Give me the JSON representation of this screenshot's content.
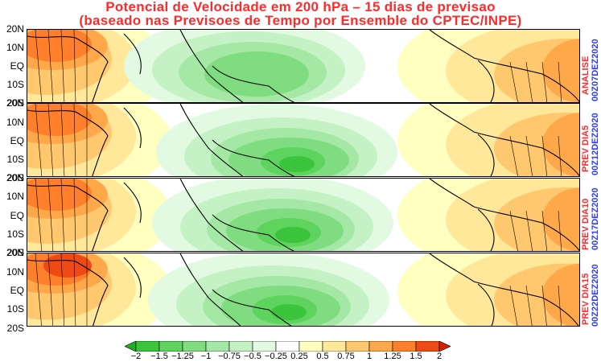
{
  "title": {
    "line1": "Potencial de Velocidade em 200 hPa – 15 dias de previsao",
    "line2": "(baseado nas Previsoes de Tempo por Ensemble do CPTEC/INPE)"
  },
  "lat_labels": [
    "20N",
    "10N",
    "EQ",
    "10S",
    "20S"
  ],
  "panels": [
    {
      "label": "ANALISE",
      "date": "00Z07DEZ2020"
    },
    {
      "label": "PREV DIA5",
      "date": "00Z12DEZ2020"
    },
    {
      "label": "PREV DIA10",
      "date": "00Z17DEZ2020"
    },
    {
      "label": "PREV DIA15",
      "date": "00Z22DEZ2020"
    }
  ],
  "colorbar": {
    "labels": [
      "−2",
      "−1.5",
      "−1.25",
      "−1",
      "−0.75",
      "−0.5",
      "−0.25",
      "0.25",
      "0.5",
      "0.75",
      "1",
      "1.25",
      "1.5",
      "2"
    ],
    "colors": [
      "#1fb01f",
      "#3cc43c",
      "#5ed35e",
      "#80dc80",
      "#a5e8a5",
      "#c4f2c4",
      "#e2fae2",
      "#ffffff",
      "#ffffc0",
      "#ffe89a",
      "#ffc86e",
      "#ffa84a",
      "#ff7f2a",
      "#f04a14",
      "#d42000"
    ]
  }
}
